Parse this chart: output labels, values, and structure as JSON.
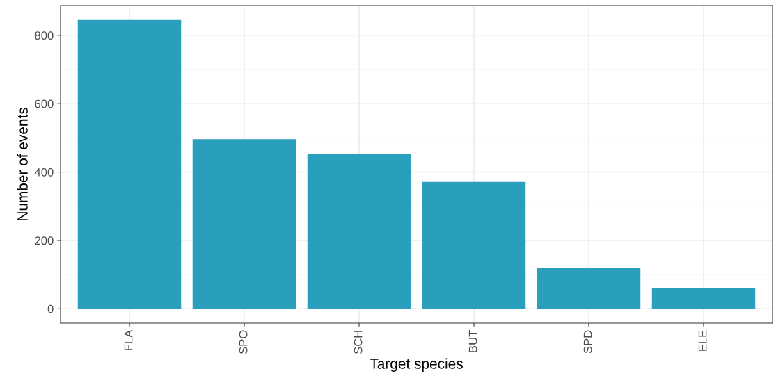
{
  "chart_data": {
    "type": "bar",
    "xlabel": "Target species",
    "ylabel": "Number of events",
    "categories": [
      "FLA",
      "SPO",
      "SCH",
      "BUT",
      "SPD",
      "ELE"
    ],
    "values": [
      845,
      496,
      454,
      371,
      120,
      61
    ],
    "color": "#2a9fbc",
    "ylim": [
      -42,
      887
    ],
    "yticks": [
      0,
      200,
      400,
      600,
      800
    ],
    "grid": true,
    "legend": false
  }
}
